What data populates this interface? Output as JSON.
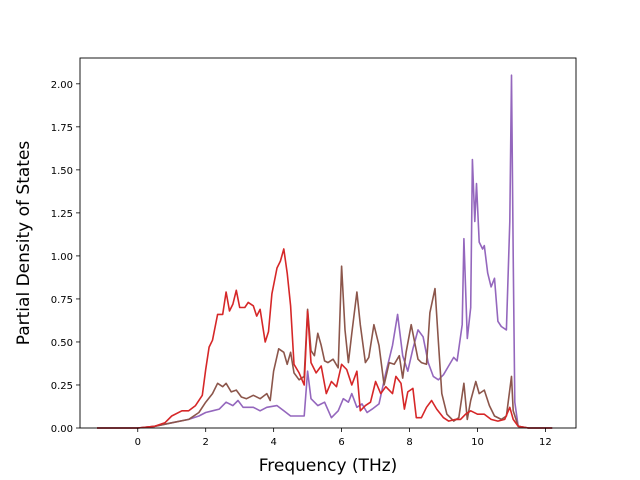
{
  "chart_data": {
    "type": "line",
    "title": "",
    "xlabel": "Frequency (THz)",
    "ylabel": "Partial Density of States",
    "xlim": [
      -1.7,
      12.9
    ],
    "ylim": [
      0.0,
      2.15
    ],
    "xticks": [
      0,
      2,
      4,
      6,
      8,
      10,
      12
    ],
    "xtick_labels": [
      "0",
      "2",
      "4",
      "6",
      "8",
      "10",
      "12"
    ],
    "yticks": [
      0.0,
      0.25,
      0.5,
      0.75,
      1.0,
      1.25,
      1.5,
      1.75,
      2.0
    ],
    "ytick_labels": [
      "0.00",
      "0.25",
      "0.50",
      "0.75",
      "1.00",
      "1.25",
      "1.50",
      "1.75",
      "2.00"
    ],
    "grid": false,
    "legend": "none",
    "series": [
      {
        "color": "#9467bd",
        "points": [
          [
            -1.2,
            0
          ],
          [
            0,
            0
          ],
          [
            0.5,
            0.01
          ],
          [
            1,
            0.03
          ],
          [
            1.5,
            0.05
          ],
          [
            1.8,
            0.07
          ],
          [
            2,
            0.09
          ],
          [
            2.2,
            0.1
          ],
          [
            2.4,
            0.11
          ],
          [
            2.6,
            0.15
          ],
          [
            2.8,
            0.13
          ],
          [
            2.95,
            0.16
          ],
          [
            3.1,
            0.12
          ],
          [
            3.4,
            0.12
          ],
          [
            3.6,
            0.1
          ],
          [
            3.8,
            0.12
          ],
          [
            4.1,
            0.13
          ],
          [
            4.3,
            0.1
          ],
          [
            4.5,
            0.07
          ],
          [
            4.9,
            0.07
          ],
          [
            5.0,
            0.33
          ],
          [
            5.1,
            0.17
          ],
          [
            5.3,
            0.13
          ],
          [
            5.5,
            0.15
          ],
          [
            5.7,
            0.06
          ],
          [
            5.9,
            0.1
          ],
          [
            6.05,
            0.17
          ],
          [
            6.2,
            0.15
          ],
          [
            6.3,
            0.2
          ],
          [
            6.45,
            0.12
          ],
          [
            6.6,
            0.14
          ],
          [
            6.75,
            0.09
          ],
          [
            6.9,
            0.11
          ],
          [
            7.1,
            0.14
          ],
          [
            7.3,
            0.32
          ],
          [
            7.5,
            0.48
          ],
          [
            7.65,
            0.66
          ],
          [
            7.8,
            0.42
          ],
          [
            7.95,
            0.33
          ],
          [
            8.1,
            0.46
          ],
          [
            8.25,
            0.57
          ],
          [
            8.4,
            0.53
          ],
          [
            8.55,
            0.38
          ],
          [
            8.7,
            0.3
          ],
          [
            8.85,
            0.28
          ],
          [
            9.0,
            0.31
          ],
          [
            9.15,
            0.36
          ],
          [
            9.3,
            0.41
          ],
          [
            9.4,
            0.39
          ],
          [
            9.55,
            0.6
          ],
          [
            9.6,
            1.1
          ],
          [
            9.7,
            0.52
          ],
          [
            9.8,
            0.7
          ],
          [
            9.85,
            1.56
          ],
          [
            9.92,
            1.2
          ],
          [
            9.97,
            1.42
          ],
          [
            10.05,
            1.08
          ],
          [
            10.15,
            1.04
          ],
          [
            10.2,
            1.06
          ],
          [
            10.3,
            0.9
          ],
          [
            10.4,
            0.82
          ],
          [
            10.5,
            0.87
          ],
          [
            10.6,
            0.62
          ],
          [
            10.7,
            0.59
          ],
          [
            10.85,
            0.57
          ],
          [
            10.95,
            1.2
          ],
          [
            11.0,
            2.05
          ],
          [
            11.05,
            1.0
          ],
          [
            11.1,
            0.15
          ],
          [
            11.2,
            0.01
          ],
          [
            11.5,
            0
          ],
          [
            12.2,
            0
          ]
        ]
      },
      {
        "color": "#8c564b",
        "points": [
          [
            -1.2,
            0
          ],
          [
            0,
            0
          ],
          [
            0.5,
            0.01
          ],
          [
            1,
            0.03
          ],
          [
            1.5,
            0.05
          ],
          [
            1.8,
            0.09
          ],
          [
            2,
            0.15
          ],
          [
            2.2,
            0.2
          ],
          [
            2.35,
            0.26
          ],
          [
            2.5,
            0.24
          ],
          [
            2.6,
            0.26
          ],
          [
            2.75,
            0.21
          ],
          [
            2.9,
            0.22
          ],
          [
            3.05,
            0.18
          ],
          [
            3.2,
            0.17
          ],
          [
            3.4,
            0.19
          ],
          [
            3.6,
            0.17
          ],
          [
            3.8,
            0.2
          ],
          [
            3.9,
            0.16
          ],
          [
            4.0,
            0.33
          ],
          [
            4.15,
            0.46
          ],
          [
            4.3,
            0.44
          ],
          [
            4.4,
            0.37
          ],
          [
            4.5,
            0.44
          ],
          [
            4.6,
            0.32
          ],
          [
            4.75,
            0.28
          ],
          [
            4.9,
            0.3
          ],
          [
            5.0,
            0.69
          ],
          [
            5.1,
            0.45
          ],
          [
            5.2,
            0.42
          ],
          [
            5.3,
            0.55
          ],
          [
            5.4,
            0.48
          ],
          [
            5.5,
            0.39
          ],
          [
            5.6,
            0.38
          ],
          [
            5.75,
            0.4
          ],
          [
            5.9,
            0.35
          ],
          [
            6.0,
            0.94
          ],
          [
            6.1,
            0.57
          ],
          [
            6.2,
            0.38
          ],
          [
            6.3,
            0.55
          ],
          [
            6.45,
            0.79
          ],
          [
            6.55,
            0.6
          ],
          [
            6.7,
            0.38
          ],
          [
            6.8,
            0.41
          ],
          [
            6.95,
            0.6
          ],
          [
            7.1,
            0.48
          ],
          [
            7.25,
            0.25
          ],
          [
            7.4,
            0.38
          ],
          [
            7.55,
            0.37
          ],
          [
            7.7,
            0.42
          ],
          [
            7.8,
            0.29
          ],
          [
            7.9,
            0.44
          ],
          [
            8.05,
            0.6
          ],
          [
            8.15,
            0.5
          ],
          [
            8.25,
            0.4
          ],
          [
            8.35,
            0.38
          ],
          [
            8.5,
            0.37
          ],
          [
            8.6,
            0.67
          ],
          [
            8.75,
            0.81
          ],
          [
            8.85,
            0.5
          ],
          [
            8.95,
            0.2
          ],
          [
            9.1,
            0.08
          ],
          [
            9.3,
            0.04
          ],
          [
            9.45,
            0.06
          ],
          [
            9.6,
            0.26
          ],
          [
            9.7,
            0.05
          ],
          [
            9.8,
            0.16
          ],
          [
            9.95,
            0.27
          ],
          [
            10.05,
            0.2
          ],
          [
            10.2,
            0.22
          ],
          [
            10.35,
            0.13
          ],
          [
            10.5,
            0.07
          ],
          [
            10.7,
            0.05
          ],
          [
            10.85,
            0.07
          ],
          [
            11.0,
            0.3
          ],
          [
            11.05,
            0.1
          ],
          [
            11.2,
            0.01
          ],
          [
            11.5,
            0
          ],
          [
            12.2,
            0
          ]
        ]
      },
      {
        "color": "#d62728",
        "points": [
          [
            -1.2,
            0
          ],
          [
            0,
            0
          ],
          [
            0.5,
            0.01
          ],
          [
            0.8,
            0.03
          ],
          [
            1,
            0.07
          ],
          [
            1.3,
            0.1
          ],
          [
            1.5,
            0.1
          ],
          [
            1.7,
            0.13
          ],
          [
            1.9,
            0.19
          ],
          [
            2.0,
            0.34
          ],
          [
            2.1,
            0.47
          ],
          [
            2.2,
            0.51
          ],
          [
            2.35,
            0.66
          ],
          [
            2.5,
            0.66
          ],
          [
            2.6,
            0.79
          ],
          [
            2.7,
            0.68
          ],
          [
            2.8,
            0.72
          ],
          [
            2.9,
            0.8
          ],
          [
            3.0,
            0.7
          ],
          [
            3.15,
            0.7
          ],
          [
            3.25,
            0.73
          ],
          [
            3.4,
            0.71
          ],
          [
            3.5,
            0.65
          ],
          [
            3.6,
            0.69
          ],
          [
            3.75,
            0.5
          ],
          [
            3.85,
            0.56
          ],
          [
            3.95,
            0.78
          ],
          [
            4.1,
            0.93
          ],
          [
            4.2,
            0.97
          ],
          [
            4.3,
            1.04
          ],
          [
            4.4,
            0.9
          ],
          [
            4.5,
            0.71
          ],
          [
            4.6,
            0.37
          ],
          [
            4.75,
            0.32
          ],
          [
            4.9,
            0.25
          ],
          [
            5.0,
            0.68
          ],
          [
            5.1,
            0.38
          ],
          [
            5.25,
            0.32
          ],
          [
            5.4,
            0.36
          ],
          [
            5.55,
            0.2
          ],
          [
            5.7,
            0.27
          ],
          [
            5.85,
            0.24
          ],
          [
            6.0,
            0.37
          ],
          [
            6.15,
            0.34
          ],
          [
            6.3,
            0.25
          ],
          [
            6.45,
            0.33
          ],
          [
            6.55,
            0.1
          ],
          [
            6.7,
            0.13
          ],
          [
            6.85,
            0.15
          ],
          [
            7.0,
            0.27
          ],
          [
            7.15,
            0.2
          ],
          [
            7.3,
            0.24
          ],
          [
            7.5,
            0.2
          ],
          [
            7.6,
            0.3
          ],
          [
            7.75,
            0.26
          ],
          [
            7.85,
            0.11
          ],
          [
            7.95,
            0.21
          ],
          [
            8.1,
            0.23
          ],
          [
            8.2,
            0.06
          ],
          [
            8.35,
            0.06
          ],
          [
            8.5,
            0.12
          ],
          [
            8.65,
            0.16
          ],
          [
            8.8,
            0.11
          ],
          [
            9.0,
            0.06
          ],
          [
            9.15,
            0.04
          ],
          [
            9.35,
            0.05
          ],
          [
            9.5,
            0.05
          ],
          [
            9.65,
            0.08
          ],
          [
            9.8,
            0.1
          ],
          [
            10.0,
            0.08
          ],
          [
            10.2,
            0.08
          ],
          [
            10.4,
            0.05
          ],
          [
            10.6,
            0.04
          ],
          [
            10.8,
            0.05
          ],
          [
            10.95,
            0.12
          ],
          [
            11.05,
            0.05
          ],
          [
            11.2,
            0.01
          ],
          [
            11.5,
            0
          ],
          [
            12.2,
            0
          ]
        ]
      }
    ]
  }
}
